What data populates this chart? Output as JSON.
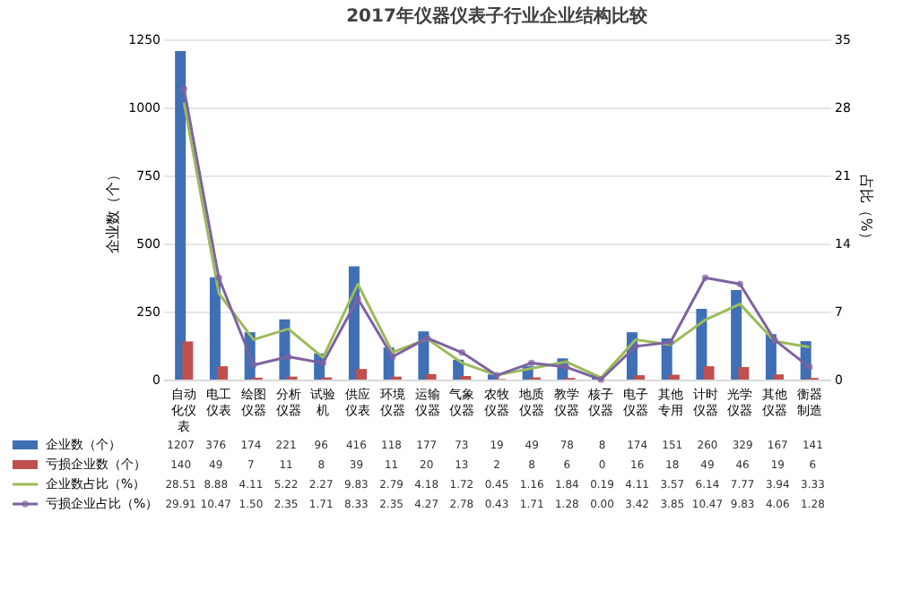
{
  "chart_data": {
    "type": "bar",
    "title": "2017年仪器仪表子行业企业结构比较",
    "ylabel": "企业数（个）",
    "y2label": "占比（%）",
    "categories": [
      "自动化仪表",
      "电工仪表",
      "绘图仪器",
      "分析仪器",
      "试验机",
      "供应仪表",
      "环境仪器",
      "运输仪器",
      "气象仪器",
      "农牧仪器",
      "地质仪器",
      "教学仪器",
      "核子仪器",
      "电子仪器",
      "其他专用",
      "计时仪器",
      "光学仪器",
      "其他仪器",
      "衡器制造"
    ],
    "series": [
      {
        "name": "企业数（个）",
        "color": "#3f6fb5",
        "values": [
          1207,
          376,
          174,
          221,
          96,
          416,
          118,
          177,
          73,
          19,
          49,
          78,
          8,
          174,
          151,
          260,
          329,
          167,
          141
        ],
        "value_labels": [
          "1207",
          "376",
          "174",
          "221",
          "96",
          "416",
          "118",
          "177",
          "73",
          "19",
          "49",
          "78",
          "8",
          "174",
          "151",
          "260",
          "329",
          "167",
          "141"
        ]
      },
      {
        "name": "亏损企业数（个）",
        "color": "#c0504d",
        "values": [
          140,
          49,
          7,
          11,
          8,
          39,
          11,
          20,
          13,
          2,
          8,
          6,
          0,
          16,
          18,
          49,
          46,
          19,
          6
        ],
        "value_labels": [
          "140",
          "49",
          "7",
          "11",
          "8",
          "39",
          "11",
          "20",
          "13",
          "2",
          "8",
          "6",
          "0",
          "16",
          "18",
          "49",
          "46",
          "19",
          "6"
        ]
      },
      {
        "name": "企业数占比（%）",
        "type": "line",
        "axis": "y2",
        "marker": "none",
        "color": "#9bbb59",
        "values": [
          28.51,
          8.88,
          4.11,
          5.22,
          2.27,
          9.83,
          2.79,
          4.18,
          1.72,
          0.45,
          1.16,
          1.84,
          0.19,
          4.11,
          3.57,
          6.14,
          7.77,
          3.94,
          3.33
        ],
        "value_labels": [
          "28.51",
          "8.88",
          "4.11",
          "5.22",
          "2.27",
          "9.83",
          "2.79",
          "4.18",
          "1.72",
          "0.45",
          "1.16",
          "1.84",
          "0.19",
          "4.11",
          "3.57",
          "6.14",
          "7.77",
          "3.94",
          "3.33"
        ]
      },
      {
        "name": "亏损企业占比（%）",
        "type": "line",
        "axis": "y2",
        "marker": "circle",
        "color": "#7e62a1",
        "values": [
          29.91,
          10.47,
          1.5,
          2.35,
          1.71,
          8.33,
          2.35,
          4.27,
          2.78,
          0.43,
          1.71,
          1.28,
          0.0,
          3.42,
          3.85,
          10.47,
          9.83,
          4.06,
          1.28
        ],
        "value_labels": [
          "29.91",
          "10.47",
          "1.50",
          "2.35",
          "1.71",
          "8.33",
          "2.35",
          "4.27",
          "2.78",
          "0.43",
          "1.71",
          "1.28",
          "0.00",
          "3.42",
          "3.85",
          "10.47",
          "9.83",
          "4.06",
          "1.28"
        ]
      }
    ],
    "ylim": [
      0,
      1250
    ],
    "yticks": [
      0,
      250,
      500,
      750,
      1000,
      1250
    ],
    "y2lim": [
      0,
      35
    ],
    "y2ticks": [
      0,
      7,
      14,
      21,
      28,
      35
    ],
    "grid": "y",
    "legend": "bottom",
    "line_style": "solid"
  }
}
